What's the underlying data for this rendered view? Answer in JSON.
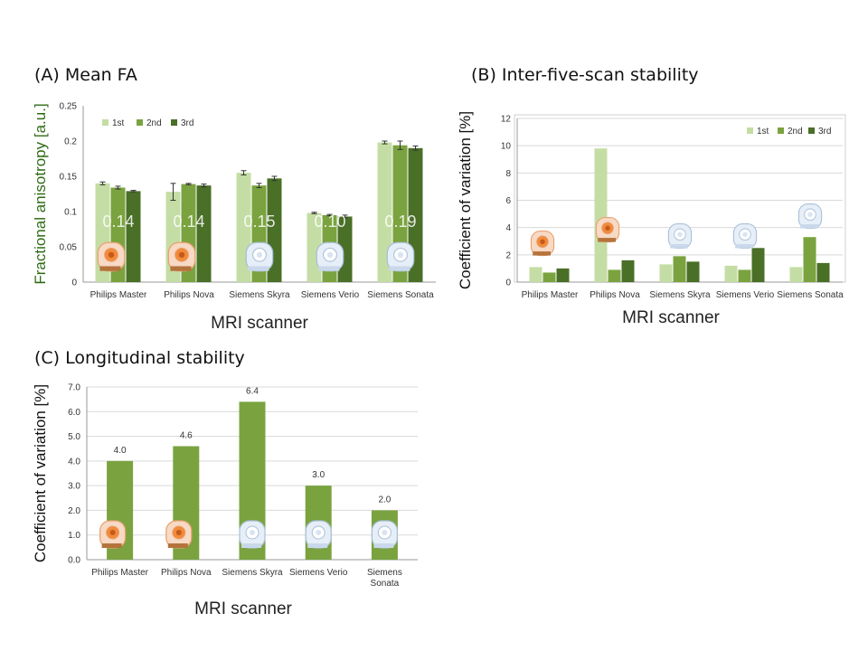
{
  "colors": {
    "first": "#c4dda4",
    "second": "#7aa33f",
    "third": "#4a6f27",
    "axis_label_a": "#2e6b14",
    "grid": "#d9d9d9"
  },
  "legend_labels": [
    "1st",
    "2nd",
    "3rd"
  ],
  "chart_data": [
    {
      "id": "A",
      "type": "bar",
      "panel_title": "(A) Mean FA",
      "title": "Mean FA",
      "xlabel": "MRI scanner",
      "ylabel": "Fractional anisotropy [a.u.]",
      "ylim": [
        0,
        0.25
      ],
      "yticks": [
        "0",
        "0.05",
        "0.1",
        "0.15",
        "0.2",
        "0.25"
      ],
      "categories": [
        "Philips Master",
        "Philips Nova",
        "Siemens Skyra",
        "Siemens Verio",
        "Siemens Sonata"
      ],
      "series": [
        {
          "name": "1st",
          "values": [
            0.14,
            0.128,
            0.155,
            0.098,
            0.198
          ],
          "errors": [
            0.002,
            0.012,
            0.003,
            0.001,
            0.002
          ]
        },
        {
          "name": "2nd",
          "values": [
            0.134,
            0.139,
            0.137,
            0.095,
            0.194
          ],
          "errors": [
            0.002,
            0.001,
            0.003,
            0.001,
            0.006
          ]
        },
        {
          "name": "3rd",
          "values": [
            0.129,
            0.137,
            0.147,
            0.093,
            0.19
          ],
          "errors": [
            0.001,
            0.002,
            0.003,
            0.002,
            0.003
          ]
        }
      ],
      "overlay_labels": [
        "0.14",
        "0.14",
        "0.15",
        "0.10",
        "0.19"
      ],
      "grid": false
    },
    {
      "id": "B",
      "type": "bar",
      "panel_title": "(B) Inter-five-scan stability",
      "title": "Inter-five-scan stability",
      "xlabel": "MRI scanner",
      "ylabel": "Coefficient of variation [%]",
      "ylim": [
        0,
        12
      ],
      "yticks": [
        "0",
        "2",
        "4",
        "6",
        "8",
        "10",
        "12"
      ],
      "categories": [
        "Philips Master",
        "Philips Nova",
        "Siemens Skyra",
        "Siemens Verio",
        "Siemens Sonata"
      ],
      "series": [
        {
          "name": "1st",
          "values": [
            1.1,
            9.8,
            1.3,
            1.2,
            1.1
          ]
        },
        {
          "name": "2nd",
          "values": [
            0.7,
            0.9,
            1.9,
            0.9,
            3.3
          ]
        },
        {
          "name": "3rd",
          "values": [
            1.0,
            1.6,
            1.5,
            2.5,
            1.4
          ]
        }
      ],
      "legend": "top-right",
      "grid": true
    },
    {
      "id": "C",
      "type": "bar",
      "panel_title": "(C) Longitudinal stability",
      "title": "Longitudinal stability",
      "xlabel": "MRI scanner",
      "ylabel": "Coefficient of variation [%]",
      "ylim": [
        0,
        7
      ],
      "yticks": [
        "0.0",
        "1.0",
        "2.0",
        "3.0",
        "4.0",
        "5.0",
        "6.0",
        "7.0"
      ],
      "categories": [
        [
          "Philips Master"
        ],
        [
          "Philips Nova"
        ],
        [
          "Siemens Skyra"
        ],
        [
          "Siemens Verio"
        ],
        [
          "Siemens",
          "Sonata"
        ]
      ],
      "values": [
        4.0,
        4.6,
        6.4,
        3.0,
        2.0
      ],
      "value_labels": [
        "4.0",
        "4.6",
        "6.4",
        "3.0",
        "2.0"
      ],
      "grid": true
    }
  ]
}
